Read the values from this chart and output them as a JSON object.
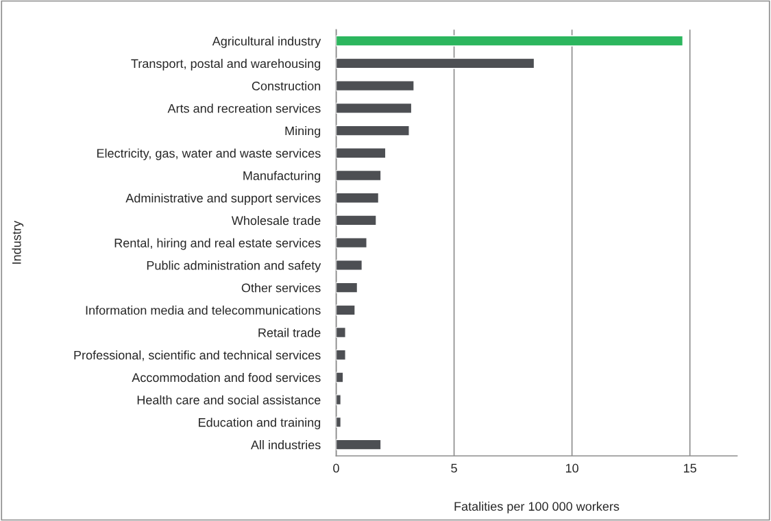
{
  "chart_data": {
    "type": "bar",
    "orientation": "horizontal",
    "categories": [
      "Agricultural industry",
      "Transport, postal and warehousing",
      "Construction",
      "Arts and recreation services",
      "Mining",
      "Electricity, gas, water and waste services",
      "Manufacturing",
      "Administrative and support services",
      "Wholesale trade",
      "Rental, hiring and real estate services",
      "Public administration and safety",
      "Other services",
      "Information media and telecommunications",
      "Retail trade",
      "Professional, scientific and technical services",
      "Accommodation and food services",
      "Health care and social assistance",
      "Education and training",
      "All industries"
    ],
    "values": [
      14.7,
      8.4,
      3.3,
      3.2,
      3.1,
      2.1,
      1.9,
      1.8,
      1.7,
      1.3,
      1.1,
      0.9,
      0.8,
      0.4,
      0.4,
      0.3,
      0.2,
      0.2,
      1.9
    ],
    "colors": [
      "#2cb65e",
      "#4d4f53",
      "#4d4f53",
      "#4d4f53",
      "#4d4f53",
      "#4d4f53",
      "#4d4f53",
      "#4d4f53",
      "#4d4f53",
      "#4d4f53",
      "#4d4f53",
      "#4d4f53",
      "#4d4f53",
      "#4d4f53",
      "#4d4f53",
      "#4d4f53",
      "#4d4f53",
      "#4d4f53",
      "#4d4f53"
    ],
    "xlabel": "Fatalities per 100 000 workers",
    "ylabel": "Industry",
    "xlim": [
      0,
      17
    ],
    "xticks": [
      0,
      5,
      10,
      15
    ],
    "grid": "x",
    "legend": false
  }
}
